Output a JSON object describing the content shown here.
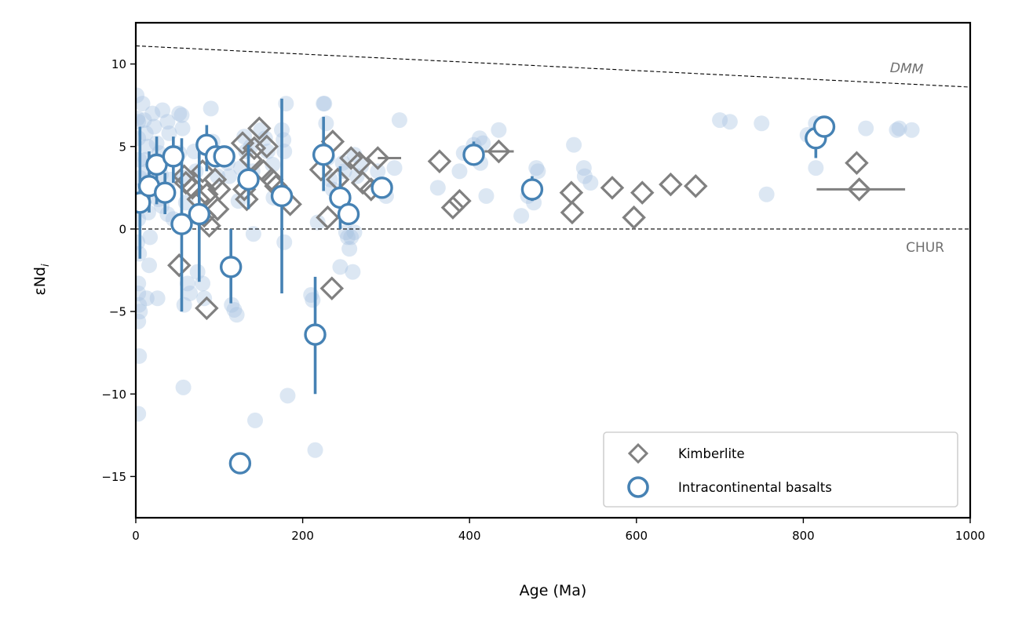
{
  "chart_data": {
    "type": "scatter",
    "title": "",
    "xlabel": "Age (Ma)",
    "ylabel": "εNd",
    "ylabel_subscript": "i",
    "xlim": [
      0,
      1000
    ],
    "ylim": [
      -17.5,
      12.5
    ],
    "xticks": [
      0,
      200,
      400,
      600,
      800,
      1000
    ],
    "xtick_labels": [
      "0",
      "200",
      "400",
      "600",
      "800",
      "1000"
    ],
    "yticks": [
      -15,
      -10,
      -5,
      0,
      5,
      10
    ],
    "ytick_labels": [
      "−15",
      "−10",
      "−5",
      "0",
      "5",
      "10"
    ],
    "grid": false,
    "legend_position": "bottom-right",
    "colors": {
      "basalt": "#4682b4",
      "kimberlite": "#808080",
      "background": "#a7c4e0",
      "reference_text": "#707070"
    },
    "reference_lines": [
      {
        "name": "DMM",
        "x": [
          0,
          1000
        ],
        "y": [
          11.1,
          8.6
        ],
        "style": "dashed",
        "label": "DMM"
      },
      {
        "name": "CHUR",
        "x": [
          0,
          1000
        ],
        "y": [
          0,
          0
        ],
        "style": "dashed",
        "label": "CHUR"
      }
    ],
    "background_points": [
      [
        1,
        8.1
      ],
      [
        2,
        6.7
      ],
      [
        3,
        6.5
      ],
      [
        3,
        5.5
      ],
      [
        4,
        4.2
      ],
      [
        5,
        3.1
      ],
      [
        4,
        2.3
      ],
      [
        6,
        1.5
      ],
      [
        3,
        0.6
      ],
      [
        2,
        -0.8
      ],
      [
        4,
        -1.5
      ],
      [
        3,
        -3.3
      ],
      [
        3,
        -3.9
      ],
      [
        4,
        -4.6
      ],
      [
        5,
        -5.0
      ],
      [
        3,
        -5.6
      ],
      [
        4,
        -7.7
      ],
      [
        3,
        -11.2
      ],
      [
        8,
        7.6
      ],
      [
        10,
        6.6
      ],
      [
        12,
        5.8
      ],
      [
        14,
        5.0
      ],
      [
        12,
        4.2
      ],
      [
        14,
        3.5
      ],
      [
        16,
        2.9
      ],
      [
        15,
        1.0
      ],
      [
        17,
        -0.5
      ],
      [
        16,
        -2.2
      ],
      [
        13,
        -4.2
      ],
      [
        20,
        7.0
      ],
      [
        22,
        6.2
      ],
      [
        25,
        5.2
      ],
      [
        28,
        4.6
      ],
      [
        30,
        3.3
      ],
      [
        27,
        1.8
      ],
      [
        31,
        1.4
      ],
      [
        26,
        -4.2
      ],
      [
        32,
        7.2
      ],
      [
        38,
        6.5
      ],
      [
        40,
        5.8
      ],
      [
        42,
        3.0
      ],
      [
        38,
        0.9
      ],
      [
        45,
        0.6
      ],
      [
        52,
        7.0
      ],
      [
        55,
        6.9
      ],
      [
        56,
        6.1
      ],
      [
        52,
        4.6
      ],
      [
        58,
        3.1
      ],
      [
        60,
        1.6
      ],
      [
        57,
        -9.6
      ],
      [
        62,
        -3.3
      ],
      [
        65,
        -3.9
      ],
      [
        58,
        -4.6
      ],
      [
        70,
        4.7
      ],
      [
        72,
        3.5
      ],
      [
        76,
        1.0
      ],
      [
        74,
        -2.6
      ],
      [
        80,
        -3.3
      ],
      [
        82,
        -4.2
      ],
      [
        90,
        7.3
      ],
      [
        92,
        5.3
      ],
      [
        95,
        4.4
      ],
      [
        98,
        3.2
      ],
      [
        110,
        4.0
      ],
      [
        112,
        3.2
      ],
      [
        115,
        -4.6
      ],
      [
        118,
        -4.9
      ],
      [
        121,
        -5.2
      ],
      [
        123,
        1.7
      ],
      [
        126,
        3.7
      ],
      [
        130,
        5.6
      ],
      [
        132,
        4.7
      ],
      [
        138,
        5.0
      ],
      [
        140,
        3.5
      ],
      [
        141,
        -0.3
      ],
      [
        143,
        -11.6
      ],
      [
        150,
        6.0
      ],
      [
        155,
        5.5
      ],
      [
        158,
        4.7
      ],
      [
        164,
        3.9
      ],
      [
        165,
        1.9
      ],
      [
        175,
        6.0
      ],
      [
        177,
        5.4
      ],
      [
        178,
        4.7
      ],
      [
        178,
        -0.8
      ],
      [
        180,
        7.6
      ],
      [
        182,
        -10.1
      ],
      [
        210,
        -4.0
      ],
      [
        212,
        -4.3
      ],
      [
        215,
        -13.4
      ],
      [
        218,
        0.4
      ],
      [
        225,
        7.6
      ],
      [
        226,
        7.6
      ],
      [
        228,
        6.4
      ],
      [
        230,
        4.3
      ],
      [
        233,
        3.0
      ],
      [
        236,
        2.4
      ],
      [
        248,
        4.0
      ],
      [
        250,
        3.5
      ],
      [
        252,
        -0.2
      ],
      [
        254,
        -0.5
      ],
      [
        256,
        -1.2
      ],
      [
        258,
        -0.5
      ],
      [
        260,
        -2.6
      ],
      [
        262,
        -0.2
      ],
      [
        245,
        -2.3
      ],
      [
        262,
        4.5
      ],
      [
        265,
        3.2
      ],
      [
        270,
        3.8
      ],
      [
        290,
        3.5
      ],
      [
        295,
        2.6
      ],
      [
        300,
        2.0
      ],
      [
        310,
        3.7
      ],
      [
        316,
        6.6
      ],
      [
        362,
        2.5
      ],
      [
        388,
        3.5
      ],
      [
        393,
        4.6
      ],
      [
        405,
        5.1
      ],
      [
        412,
        5.5
      ],
      [
        416,
        5.2
      ],
      [
        420,
        2.0
      ],
      [
        413,
        4.0
      ],
      [
        435,
        6.0
      ],
      [
        462,
        0.8
      ],
      [
        470,
        2.0
      ],
      [
        477,
        1.6
      ],
      [
        480,
        3.7
      ],
      [
        482,
        3.5
      ],
      [
        525,
        5.1
      ],
      [
        537,
        3.7
      ],
      [
        538,
        3.2
      ],
      [
        545,
        2.8
      ],
      [
        700,
        6.6
      ],
      [
        712,
        6.5
      ],
      [
        750,
        6.4
      ],
      [
        756,
        2.1
      ],
      [
        805,
        5.7
      ],
      [
        815,
        3.7
      ],
      [
        815,
        6.4
      ],
      [
        818,
        5.9
      ],
      [
        875,
        6.1
      ],
      [
        912,
        6.0
      ],
      [
        915,
        6.1
      ],
      [
        930,
        6.0
      ]
    ],
    "series": [
      {
        "name": "Kimberlite",
        "marker": "diamond",
        "points": [
          {
            "x": 52,
            "y": -2.2
          },
          {
            "x": 58,
            "y": 3.2
          },
          {
            "x": 60,
            "y": 2.8
          },
          {
            "x": 68,
            "y": 2.5
          },
          {
            "x": 75,
            "y": 1.8
          },
          {
            "x": 80,
            "y": 3.5
          },
          {
            "x": 82,
            "y": 0.8
          },
          {
            "x": 85,
            "y": 2.1
          },
          {
            "x": 85,
            "y": -4.8
          },
          {
            "x": 88,
            "y": 0.2
          },
          {
            "x": 95,
            "y": 3.0
          },
          {
            "x": 98,
            "y": 1.2
          },
          {
            "x": 100,
            "y": 2.4
          },
          {
            "x": 128,
            "y": 5.2
          },
          {
            "x": 130,
            "y": 2.4
          },
          {
            "x": 133,
            "y": 1.8
          },
          {
            "x": 138,
            "y": 4.2
          },
          {
            "x": 142,
            "y": 4.9
          },
          {
            "x": 148,
            "y": 6.1
          },
          {
            "x": 153,
            "y": 3.5
          },
          {
            "x": 157,
            "y": 5.0
          },
          {
            "x": 163,
            "y": 3.0
          },
          {
            "x": 168,
            "y": 2.6
          },
          {
            "x": 185,
            "y": 1.5
          },
          {
            "x": 222,
            "y": 3.6
          },
          {
            "x": 230,
            "y": 0.7
          },
          {
            "x": 236,
            "y": 5.3
          },
          {
            "x": 235,
            "y": -3.6
          },
          {
            "x": 242,
            "y": 3.0
          },
          {
            "x": 258,
            "y": 4.3
          },
          {
            "x": 268,
            "y": 4.0
          },
          {
            "x": 272,
            "y": 2.8
          },
          {
            "x": 282,
            "y": 2.4
          },
          {
            "x": 290,
            "y": 4.3,
            "xerr": [
              290,
              318
            ]
          },
          {
            "x": 364,
            "y": 4.1
          },
          {
            "x": 380,
            "y": 1.3
          },
          {
            "x": 388,
            "y": 1.7
          },
          {
            "x": 435,
            "y": 4.7,
            "xerr": [
              418,
              453
            ]
          },
          {
            "x": 522,
            "y": 2.2
          },
          {
            "x": 523,
            "y": 1.0
          },
          {
            "x": 571,
            "y": 2.5
          },
          {
            "x": 597,
            "y": 0.7
          },
          {
            "x": 607,
            "y": 2.2
          },
          {
            "x": 641,
            "y": 2.7
          },
          {
            "x": 671,
            "y": 2.6
          },
          {
            "x": 864,
            "y": 4.0
          },
          {
            "x": 867,
            "y": 2.4,
            "xerr": [
              816,
              922
            ]
          }
        ]
      },
      {
        "name": "Intracontinental basalts",
        "marker": "circle",
        "points": [
          {
            "x": 5,
            "y": 1.6,
            "yerr": [
              -1.8,
              6.2
            ]
          },
          {
            "x": 16,
            "y": 2.6,
            "yerr": [
              1.0,
              4.7
            ]
          },
          {
            "x": 25,
            "y": 3.9,
            "yerr": [
              1.5,
              5.6
            ]
          },
          {
            "x": 35,
            "y": 2.2,
            "yerr": [
              0.9,
              3.4
            ]
          },
          {
            "x": 45,
            "y": 4.4,
            "yerr": [
              2.8,
              5.6
            ]
          },
          {
            "x": 55,
            "y": 0.3,
            "yerr": [
              -5.0,
              5.5
            ]
          },
          {
            "x": 76,
            "y": 0.9,
            "yerr": [
              -3.2,
              5.0
            ]
          },
          {
            "x": 85,
            "y": 5.1,
            "yerr": [
              3.5,
              6.3
            ]
          },
          {
            "x": 96,
            "y": 4.4
          },
          {
            "x": 106,
            "y": 4.4
          },
          {
            "x": 114,
            "y": -2.3,
            "yerr": [
              -4.5,
              0
            ]
          },
          {
            "x": 125,
            "y": -14.2
          },
          {
            "x": 135,
            "y": 3.0,
            "yerr": [
              1.2,
              5.1
            ]
          },
          {
            "x": 175,
            "y": 2.0,
            "yerr": [
              -3.9,
              7.9
            ]
          },
          {
            "x": 215,
            "y": -6.4,
            "yerr": [
              -10.0,
              -2.9
            ]
          },
          {
            "x": 225,
            "y": 4.5,
            "yerr": [
              2.3,
              6.8
            ]
          },
          {
            "x": 245,
            "y": 1.9,
            "yerr": [
              0,
              3.8
            ]
          },
          {
            "x": 255,
            "y": 0.9
          },
          {
            "x": 295,
            "y": 2.5
          },
          {
            "x": 405,
            "y": 4.5,
            "yerr": [
              4.3,
              5.3
            ]
          },
          {
            "x": 475,
            "y": 2.4,
            "yerr": [
              1.7,
              3.2
            ]
          },
          {
            "x": 815,
            "y": 5.5,
            "yerr": [
              4.3,
              6.4
            ]
          },
          {
            "x": 825,
            "y": 6.2
          }
        ]
      }
    ],
    "legend": [
      {
        "label": "Kimberlite",
        "marker": "diamond"
      },
      {
        "label": "Intracontinental basalts",
        "marker": "circle"
      }
    ]
  }
}
